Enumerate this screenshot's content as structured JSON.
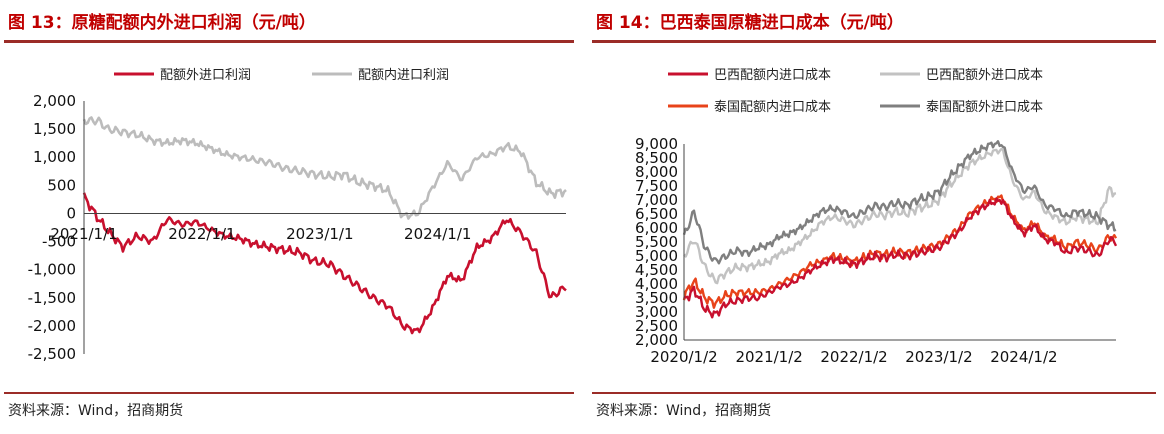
{
  "left": {
    "title": "图 13：原糖配额内外进口利润（元/吨）",
    "source": "资料来源：Wind，招商期货",
    "chart_data": {
      "type": "line",
      "x_ticks": [
        "2021/1/1",
        "2022/1/1",
        "2023/1/1",
        "2024/1/1"
      ],
      "y_ticks": [
        "2,000",
        "1,500",
        "1,000",
        "500",
        "0",
        "-500",
        "-1,000",
        "-1,500",
        "-2,000",
        "-2,500"
      ],
      "ylim": [
        -2500,
        2000
      ],
      "x_range": [
        "2021/1/1",
        "2025/2/1"
      ],
      "legend": "top",
      "series": [
        {
          "name": "配额外进口利润",
          "color": "#c8102e",
          "width": 2.6,
          "x": [
            "2021/1/1",
            "2021/2/15",
            "2021/3/15",
            "2021/5/1",
            "2021/6/15",
            "2021/8/1",
            "2021/9/15",
            "2021/11/1",
            "2021/12/15",
            "2022/2/1",
            "2022/3/15",
            "2022/5/1",
            "2022/6/15",
            "2022/8/1",
            "2022/9/15",
            "2022/11/1",
            "2022/12/15",
            "2023/2/1",
            "2023/3/15",
            "2023/5/1",
            "2023/6/15",
            "2023/8/1",
            "2023/9/15",
            "2023/11/1",
            "2023/12/15",
            "2024/2/1",
            "2024/3/15",
            "2024/5/1",
            "2024/6/15",
            "2024/8/1",
            "2024/9/15",
            "2024/11/1",
            "2024/12/15",
            "2025/2/1"
          ],
          "values": [
            300,
            -100,
            -300,
            -600,
            -400,
            -500,
            -100,
            -200,
            -150,
            -300,
            -400,
            -450,
            -550,
            -600,
            -650,
            -700,
            -850,
            -900,
            -1100,
            -1300,
            -1500,
            -1650,
            -2000,
            -2100,
            -1700,
            -1100,
            -1200,
            -600,
            -450,
            -100,
            -350,
            -700,
            -1500,
            -1300
          ]
        },
        {
          "name": "配额内进口利润",
          "color": "#bcbcbc",
          "width": 2.6,
          "x": [
            "2021/1/1",
            "2021/2/15",
            "2021/3/15",
            "2021/5/1",
            "2021/6/15",
            "2021/8/1",
            "2021/9/15",
            "2021/11/1",
            "2021/12/15",
            "2022/2/1",
            "2022/3/15",
            "2022/5/1",
            "2022/6/15",
            "2022/8/1",
            "2022/9/15",
            "2022/11/1",
            "2022/12/15",
            "2023/2/1",
            "2023/3/15",
            "2023/5/1",
            "2023/6/15",
            "2023/8/1",
            "2023/9/15",
            "2023/11/1",
            "2023/12/15",
            "2024/2/1",
            "2024/3/15",
            "2024/5/1",
            "2024/6/15",
            "2024/8/1",
            "2024/9/15",
            "2024/11/1",
            "2024/12/15",
            "2025/2/1"
          ],
          "values": [
            1650,
            1650,
            1500,
            1450,
            1400,
            1300,
            1250,
            1300,
            1250,
            1150,
            1050,
            1000,
            950,
            900,
            800,
            750,
            700,
            650,
            700,
            550,
            500,
            400,
            -50,
            0,
            450,
            900,
            600,
            1000,
            1050,
            1200,
            1100,
            550,
            350,
            400
          ]
        }
      ]
    }
  },
  "right": {
    "title": "图 14：巴西泰国原糖进口成本（元/吨）",
    "source": "资料来源：Wind，招商期货",
    "chart_data": {
      "type": "line",
      "x_ticks": [
        "2020/1/2",
        "2021/1/2",
        "2022/1/2",
        "2023/1/2",
        "2024/1/2"
      ],
      "y_ticks": [
        "9,000",
        "8,500",
        "8,000",
        "7,500",
        "7,000",
        "6,500",
        "6,000",
        "5,500",
        "5,000",
        "4,500",
        "4,000",
        "3,500",
        "3,000",
        "2,500",
        "2,000"
      ],
      "ylim": [
        2000,
        9000
      ],
      "x_range": [
        "2020/1/2",
        "2025/2/1"
      ],
      "legend": "top",
      "series": [
        {
          "name": "巴西配额内进口成本",
          "color": "#c8102e",
          "width": 2.4,
          "x": [
            "2020/1/2",
            "2020/2/15",
            "2020/4/1",
            "2020/5/15",
            "2020/7/1",
            "2020/8/15",
            "2020/10/1",
            "2020/11/15",
            "2021/1/2",
            "2021/2/15",
            "2021/4/1",
            "2021/5/15",
            "2021/7/1",
            "2021/8/15",
            "2021/10/1",
            "2021/11/15",
            "2022/1/2",
            "2022/2/15",
            "2022/4/1",
            "2022/5/15",
            "2022/7/1",
            "2022/8/15",
            "2022/10/1",
            "2022/11/15",
            "2023/1/2",
            "2023/2/15",
            "2023/4/1",
            "2023/5/15",
            "2023/7/1",
            "2023/8/15",
            "2023/10/1",
            "2023/11/15",
            "2024/1/2",
            "2024/2/15",
            "2024/4/1",
            "2024/5/15",
            "2024/7/1",
            "2024/8/15",
            "2024/10/1",
            "2024/11/15",
            "2025/1/2",
            "2025/2/1"
          ],
          "values": [
            3400,
            3800,
            3100,
            2900,
            3300,
            3400,
            3500,
            3500,
            3700,
            3900,
            4000,
            4200,
            4500,
            4700,
            4900,
            4800,
            4700,
            4850,
            5000,
            4950,
            5050,
            5000,
            5100,
            5200,
            5300,
            5600,
            5900,
            6400,
            6700,
            6900,
            7000,
            6300,
            5800,
            6100,
            5600,
            5500,
            5100,
            5300,
            5200,
            5000,
            5600,
            5500
          ]
        },
        {
          "name": "巴西配额外进口成本",
          "color": "#c2c2c2",
          "width": 2.4,
          "x": [
            "2020/1/2",
            "2020/2/15",
            "2020/4/1",
            "2020/5/15",
            "2020/7/1",
            "2020/8/15",
            "2020/10/1",
            "2020/11/15",
            "2021/1/2",
            "2021/2/15",
            "2021/4/1",
            "2021/5/15",
            "2021/7/1",
            "2021/8/15",
            "2021/10/1",
            "2021/11/15",
            "2022/1/2",
            "2022/2/15",
            "2022/4/1",
            "2022/5/15",
            "2022/7/1",
            "2022/8/15",
            "2022/10/1",
            "2022/11/15",
            "2023/1/2",
            "2023/2/15",
            "2023/4/1",
            "2023/5/15",
            "2023/7/1",
            "2023/8/15",
            "2023/10/1",
            "2023/11/15",
            "2024/1/2",
            "2024/2/15",
            "2024/4/1",
            "2024/5/15",
            "2024/7/1",
            "2024/8/15",
            "2024/10/1",
            "2024/11/15",
            "2025/1/2",
            "2025/2/1"
          ],
          "values": [
            5000,
            5600,
            4600,
            4100,
            4400,
            4600,
            4600,
            4700,
            4800,
            5100,
            5200,
            5500,
            5800,
            6200,
            6400,
            6300,
            6100,
            6300,
            6500,
            6450,
            6600,
            6500,
            6700,
            6800,
            7000,
            7500,
            7900,
            8300,
            8500,
            8700,
            8800,
            7700,
            7000,
            7300,
            6600,
            6400,
            6200,
            6400,
            6300,
            6200,
            7400,
            7200
          ]
        },
        {
          "name": "泰国配额内进口成本",
          "color": "#e8431a",
          "width": 2.4,
          "x": [
            "2020/1/2",
            "2020/2/15",
            "2020/4/1",
            "2020/5/15",
            "2020/7/1",
            "2020/8/15",
            "2020/10/1",
            "2020/11/15",
            "2021/1/2",
            "2021/2/15",
            "2021/4/1",
            "2021/5/15",
            "2021/7/1",
            "2021/8/15",
            "2021/10/1",
            "2021/11/15",
            "2022/1/2",
            "2022/2/15",
            "2022/4/1",
            "2022/5/15",
            "2022/7/1",
            "2022/8/15",
            "2022/10/1",
            "2022/11/15",
            "2023/1/2",
            "2023/2/15",
            "2023/4/1",
            "2023/5/15",
            "2023/7/1",
            "2023/8/15",
            "2023/10/1",
            "2023/11/15",
            "2024/1/2",
            "2024/2/15",
            "2024/4/1",
            "2024/5/15",
            "2024/7/1",
            "2024/8/15",
            "2024/10/1",
            "2024/11/15",
            "2025/1/2",
            "2025/2/1"
          ],
          "values": [
            3600,
            4100,
            3500,
            3300,
            3600,
            3700,
            3700,
            3700,
            3800,
            4000,
            4200,
            4400,
            4700,
            4800,
            5000,
            4900,
            4800,
            4950,
            5100,
            5050,
            5150,
            5100,
            5200,
            5300,
            5400,
            5700,
            6000,
            6500,
            6800,
            7000,
            7100,
            6400,
            5900,
            6200,
            5700,
            5600,
            5300,
            5500,
            5400,
            5200,
            5700,
            5600
          ]
        },
        {
          "name": "泰国配额外进口成本",
          "color": "#7f7f7f",
          "width": 2.4,
          "x": [
            "2020/1/2",
            "2020/2/15",
            "2020/4/1",
            "2020/5/15",
            "2020/7/1",
            "2020/8/15",
            "2020/10/1",
            "2020/11/15",
            "2021/1/2",
            "2021/2/15",
            "2021/4/1",
            "2021/5/15",
            "2021/7/1",
            "2021/8/15",
            "2021/10/1",
            "2021/11/15",
            "2022/1/2",
            "2022/2/15",
            "2022/4/1",
            "2022/5/15",
            "2022/7/1",
            "2022/8/15",
            "2022/10/1",
            "2022/11/15",
            "2023/1/2",
            "2023/2/15",
            "2023/4/1",
            "2023/5/15",
            "2023/7/1",
            "2023/8/15",
            "2023/10/1",
            "2023/11/15",
            "2024/1/2",
            "2024/2/15",
            "2024/4/1",
            "2024/5/15",
            "2024/7/1",
            "2024/8/15",
            "2024/10/1",
            "2024/11/15",
            "2025/1/2",
            "2025/2/1"
          ],
          "values": [
            5700,
            6600,
            5300,
            4800,
            5000,
            5200,
            5100,
            5300,
            5400,
            5700,
            5800,
            6000,
            6300,
            6600,
            6700,
            6600,
            6400,
            6600,
            6800,
            6750,
            6900,
            6800,
            7000,
            7100,
            7300,
            7800,
            8200,
            8600,
            8800,
            9000,
            9000,
            8000,
            7300,
            7500,
            6800,
            6700,
            6400,
            6600,
            6500,
            6400,
            6100,
            6000
          ]
        }
      ]
    }
  }
}
